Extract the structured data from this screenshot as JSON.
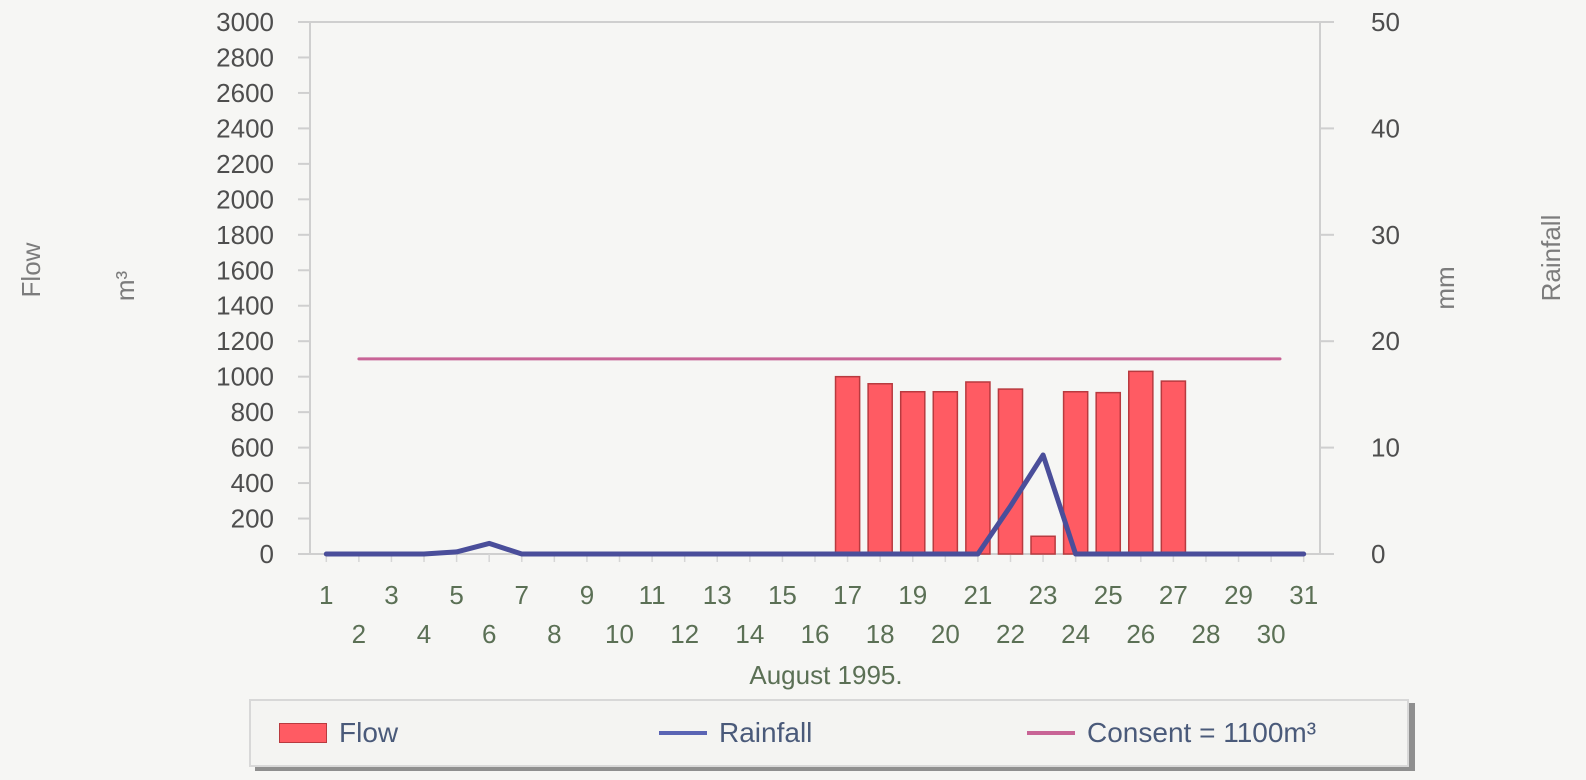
{
  "chart_data": {
    "type": "bar",
    "title": "",
    "xlabel": "August 1995.",
    "ylabel_left": "Flow",
    "ylabel_left_unit": "m³",
    "ylabel_right": "Rainfall",
    "ylabel_right_unit": "mm",
    "ylim_left": [
      0,
      3000
    ],
    "ylim_right": [
      0,
      50
    ],
    "y_ticks_left": [
      0,
      200,
      400,
      600,
      800,
      1000,
      1200,
      1400,
      1600,
      1800,
      2000,
      2200,
      2400,
      2600,
      2800,
      3000
    ],
    "y_ticks_right": [
      0,
      10,
      20,
      30,
      40,
      50
    ],
    "categories": [
      "1",
      "2",
      "3",
      "4",
      "5",
      "6",
      "7",
      "8",
      "9",
      "10",
      "11",
      "12",
      "13",
      "14",
      "15",
      "16",
      "17",
      "18",
      "19",
      "20",
      "21",
      "22",
      "23",
      "24",
      "25",
      "26",
      "27",
      "28",
      "29",
      "30",
      "31"
    ],
    "series": [
      {
        "name": "Flow",
        "type": "bar",
        "axis": "left",
        "color": "#ff5b63",
        "values": [
          0,
          0,
          0,
          0,
          0,
          0,
          0,
          0,
          0,
          0,
          0,
          0,
          0,
          0,
          0,
          0,
          1000,
          960,
          915,
          915,
          970,
          930,
          100,
          915,
          910,
          1030,
          975,
          0,
          0,
          0,
          0
        ]
      },
      {
        "name": "Rainfall",
        "type": "line",
        "axis": "right",
        "color": "#4a4e9a",
        "values": [
          0,
          0,
          0,
          0,
          0.2,
          1,
          0,
          0,
          0,
          0,
          0,
          0,
          0,
          0,
          0,
          0,
          0,
          0,
          0,
          0,
          0,
          4.5,
          9.3,
          0,
          0,
          0,
          0,
          0,
          0,
          0,
          0
        ]
      },
      {
        "name": "Consent = 1100m³",
        "type": "line",
        "axis": "left",
        "color": "#c86496",
        "values": [
          1100,
          1100,
          1100,
          1100,
          1100,
          1100,
          1100,
          1100,
          1100,
          1100,
          1100,
          1100,
          1100,
          1100,
          1100,
          1100,
          1100,
          1100,
          1100,
          1100,
          1100,
          1100,
          1100,
          1100,
          1100,
          1100,
          1100,
          1100,
          1100,
          1100,
          1100
        ]
      }
    ],
    "legend": {
      "placement": "bottom",
      "entries": [
        "Flow",
        "Rainfall",
        "Consent = 1100m³"
      ]
    },
    "grid": false
  }
}
